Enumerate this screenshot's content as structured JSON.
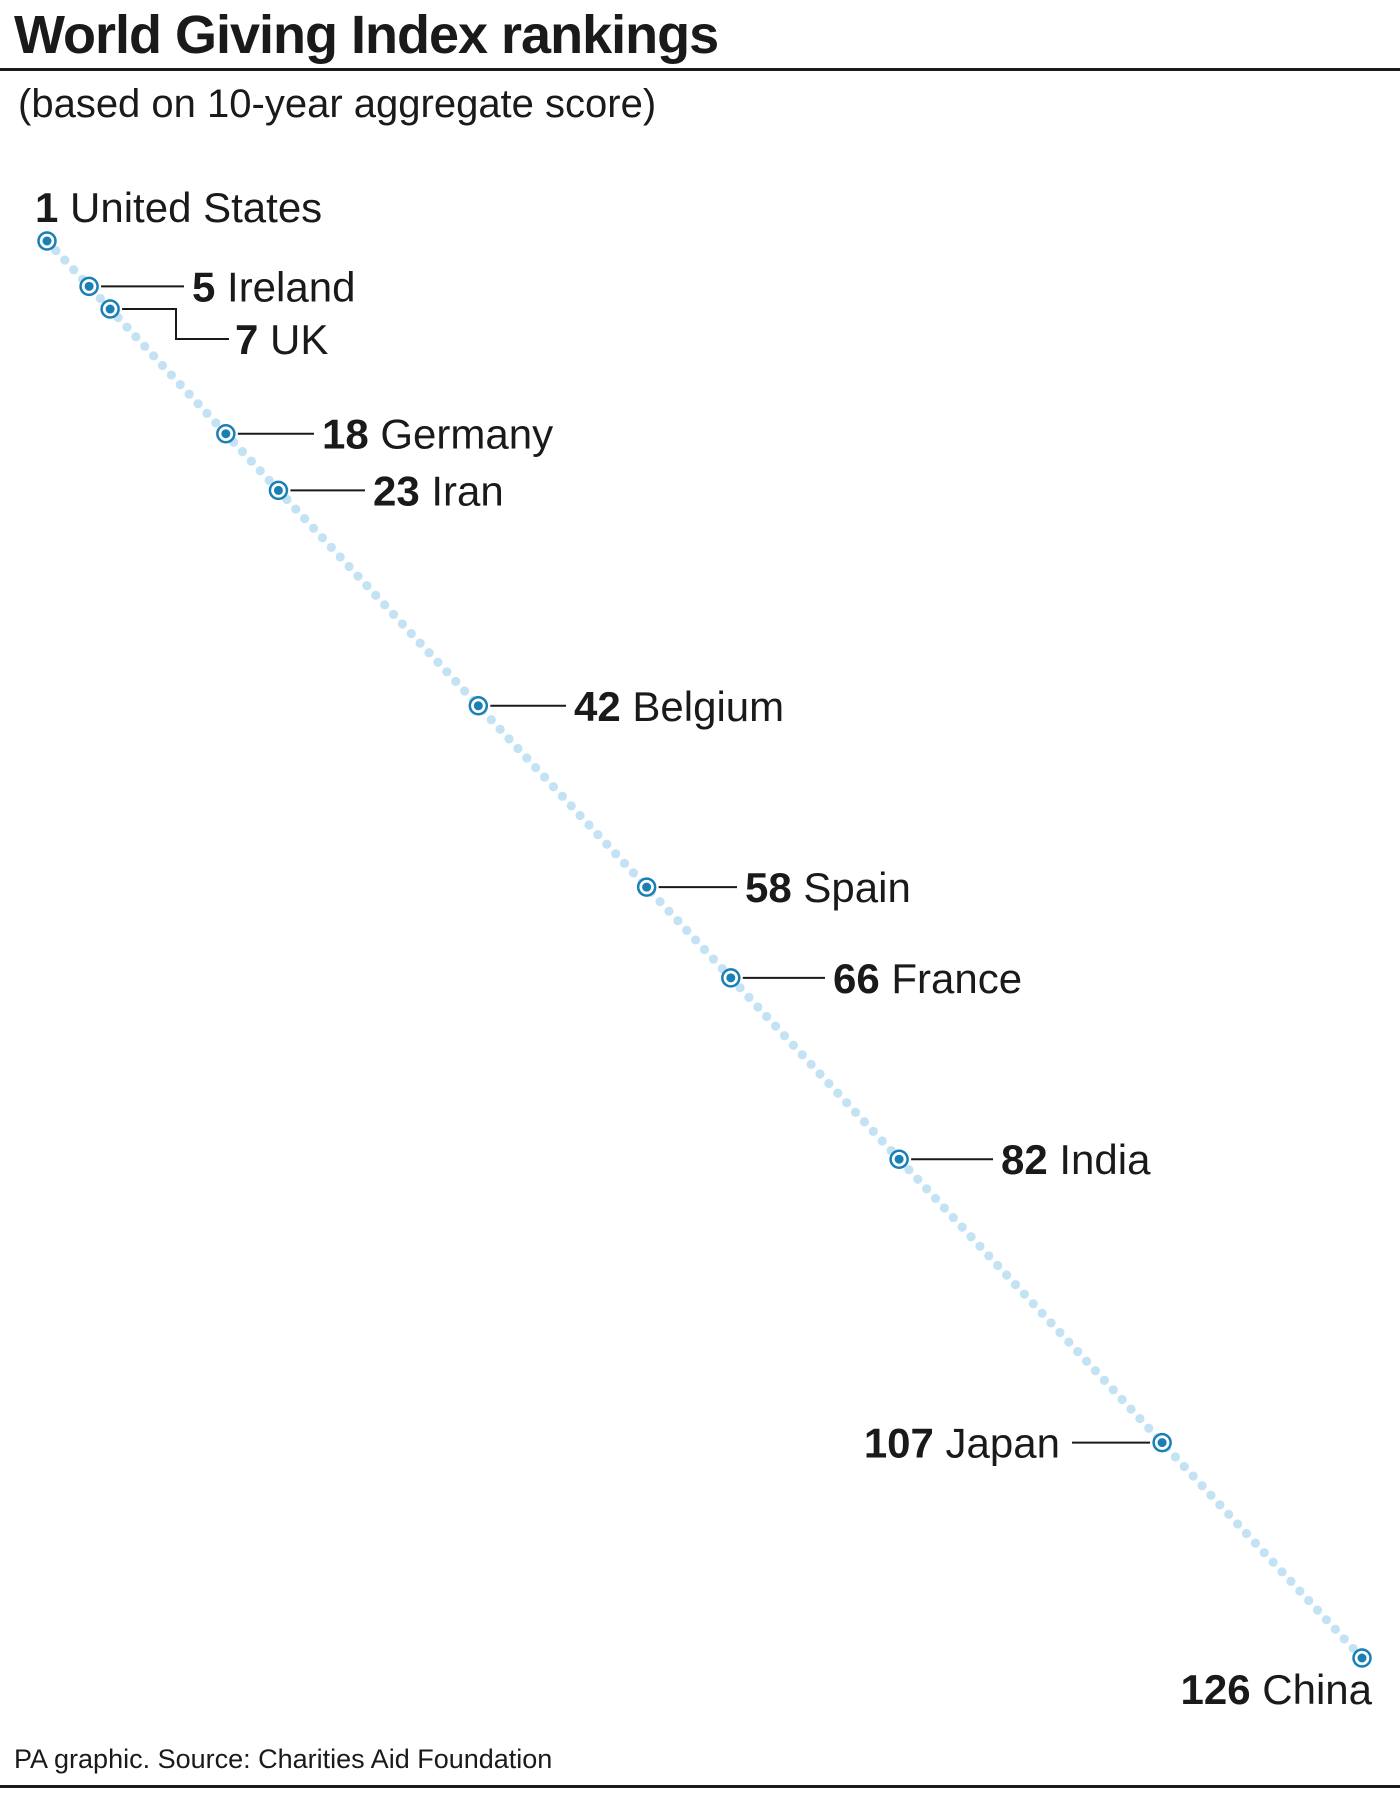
{
  "header": {
    "title": "World Giving Index rankings",
    "subtitle": "(based on 10-year aggregate score)"
  },
  "footer": {
    "source": "PA graphic. Source: Charities Aid Foundation"
  },
  "colors": {
    "marker": "#1a7fb5",
    "trail": "#c3e3f5",
    "text": "#1a1a1a"
  },
  "chart_data": {
    "type": "scatter",
    "title": "World Giving Index rankings",
    "subtitle": "(based on 10-year aggregate score)",
    "xlabel": "",
    "ylabel": "",
    "rank_range": [
      1,
      126
    ],
    "grid": false,
    "points": [
      {
        "rank": 1,
        "country": "United States"
      },
      {
        "rank": 5,
        "country": "Ireland"
      },
      {
        "rank": 7,
        "country": "UK"
      },
      {
        "rank": 18,
        "country": "Germany"
      },
      {
        "rank": 23,
        "country": "Iran"
      },
      {
        "rank": 42,
        "country": "Belgium"
      },
      {
        "rank": 58,
        "country": "Spain"
      },
      {
        "rank": 66,
        "country": "France"
      },
      {
        "rank": 82,
        "country": "India"
      },
      {
        "rank": 107,
        "country": "Japan"
      },
      {
        "rank": 126,
        "country": "China"
      }
    ]
  }
}
